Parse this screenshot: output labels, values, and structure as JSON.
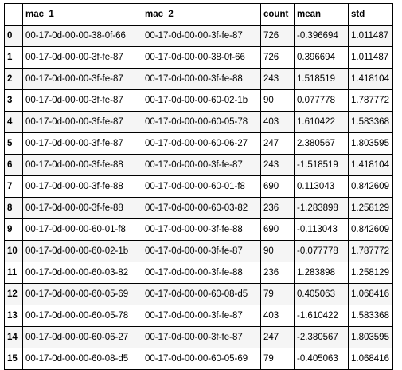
{
  "table": {
    "index_header": "",
    "columns": [
      "mac_1",
      "mac_2",
      "count",
      "mean",
      "std"
    ],
    "rows": [
      {
        "index": "0",
        "mac_1": "00-17-0d-00-00-38-0f-66",
        "mac_2": "00-17-0d-00-00-3f-fe-87",
        "count": "726",
        "mean": "-0.396694",
        "std": "1.011487"
      },
      {
        "index": "1",
        "mac_1": "00-17-0d-00-00-3f-fe-87",
        "mac_2": "00-17-0d-00-00-38-0f-66",
        "count": "726",
        "mean": "0.396694",
        "std": "1.011487"
      },
      {
        "index": "2",
        "mac_1": "00-17-0d-00-00-3f-fe-87",
        "mac_2": "00-17-0d-00-00-3f-fe-88",
        "count": "243",
        "mean": "1.518519",
        "std": "1.418104"
      },
      {
        "index": "3",
        "mac_1": "00-17-0d-00-00-3f-fe-87",
        "mac_2": "00-17-0d-00-00-60-02-1b",
        "count": "90",
        "mean": "0.077778",
        "std": "1.787772"
      },
      {
        "index": "4",
        "mac_1": "00-17-0d-00-00-3f-fe-87",
        "mac_2": "00-17-0d-00-00-60-05-78",
        "count": "403",
        "mean": "1.610422",
        "std": "1.583368"
      },
      {
        "index": "5",
        "mac_1": "00-17-0d-00-00-3f-fe-87",
        "mac_2": "00-17-0d-00-00-60-06-27",
        "count": "247",
        "mean": "2.380567",
        "std": "1.803595"
      },
      {
        "index": "6",
        "mac_1": "00-17-0d-00-00-3f-fe-88",
        "mac_2": "00-17-0d-00-00-3f-fe-87",
        "count": "243",
        "mean": "-1.518519",
        "std": "1.418104"
      },
      {
        "index": "7",
        "mac_1": "00-17-0d-00-00-3f-fe-88",
        "mac_2": "00-17-0d-00-00-60-01-f8",
        "count": "690",
        "mean": "0.113043",
        "std": "0.842609"
      },
      {
        "index": "8",
        "mac_1": "00-17-0d-00-00-3f-fe-88",
        "mac_2": "00-17-0d-00-00-60-03-82",
        "count": "236",
        "mean": "-1.283898",
        "std": "1.258129"
      },
      {
        "index": "9",
        "mac_1": "00-17-0d-00-00-60-01-f8",
        "mac_2": "00-17-0d-00-00-3f-fe-88",
        "count": "690",
        "mean": "-0.113043",
        "std": "0.842609"
      },
      {
        "index": "10",
        "mac_1": "00-17-0d-00-00-60-02-1b",
        "mac_2": "00-17-0d-00-00-3f-fe-87",
        "count": "90",
        "mean": "-0.077778",
        "std": "1.787772"
      },
      {
        "index": "11",
        "mac_1": "00-17-0d-00-00-60-03-82",
        "mac_2": "00-17-0d-00-00-3f-fe-88",
        "count": "236",
        "mean": "1.283898",
        "std": "1.258129"
      },
      {
        "index": "12",
        "mac_1": "00-17-0d-00-00-60-05-69",
        "mac_2": "00-17-0d-00-00-60-08-d5",
        "count": "79",
        "mean": "0.405063",
        "std": "1.068416"
      },
      {
        "index": "13",
        "mac_1": "00-17-0d-00-00-60-05-78",
        "mac_2": "00-17-0d-00-00-3f-fe-87",
        "count": "403",
        "mean": "-1.610422",
        "std": "1.583368"
      },
      {
        "index": "14",
        "mac_1": "00-17-0d-00-00-60-06-27",
        "mac_2": "00-17-0d-00-00-3f-fe-87",
        "count": "247",
        "mean": "-2.380567",
        "std": "1.803595"
      },
      {
        "index": "15",
        "mac_1": "00-17-0d-00-00-60-08-d5",
        "mac_2": "00-17-0d-00-00-60-05-69",
        "count": "79",
        "mean": "-0.405063",
        "std": "1.068416"
      }
    ]
  }
}
